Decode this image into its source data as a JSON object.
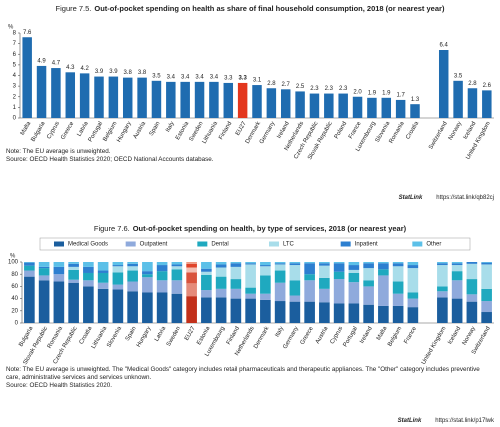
{
  "chart_data": [
    {
      "type": "bar",
      "figure_label": "Figure 7.5.",
      "title": "Out-of-pocket spending on health as share of final household consumption, 2018 (or nearest year)",
      "y_unit": "%",
      "categories": [
        "Malta",
        "Bulgaria",
        "Cyprus",
        "Greece",
        "Latvia",
        "Portugal",
        "Belgium",
        "Hungary",
        "Austria",
        "Spain",
        "Italy",
        "Estonia",
        "Sweden",
        "Lithuania",
        "Finland",
        "EU27",
        "Denmark",
        "Germany",
        "Ireland",
        "Netherlands",
        "Czech Republic",
        "Slovak Republic",
        "Poland",
        "France",
        "Luxembourg",
        "Slovenia",
        "Romania",
        "Croatia",
        null,
        "Switzerland",
        "Norway",
        "Iceland",
        "United Kingdom"
      ],
      "values": [
        7.6,
        4.9,
        4.7,
        4.3,
        4.2,
        3.9,
        3.9,
        3.8,
        3.8,
        3.5,
        3.4,
        3.4,
        3.4,
        3.4,
        3.3,
        3.3,
        3.1,
        2.8,
        2.7,
        2.5,
        2.3,
        2.3,
        2.3,
        2.0,
        1.9,
        1.9,
        1.7,
        1.3,
        null,
        6.4,
        3.5,
        2.8,
        2.6
      ],
      "value_labels": [
        "7.6",
        "4.9",
        "4.7",
        "4.3",
        "4.2",
        "3.9",
        "3.9",
        "3.8",
        "3.8",
        "3.5",
        "3.4",
        "3.4",
        "3.4",
        "3.4",
        "3.3",
        "3.3",
        "3.1",
        "2.8",
        "2.7",
        "2.5",
        "2.3",
        "2.3",
        "2.3",
        "2.0",
        "1.9",
        "1.9",
        "1.7",
        "1.3",
        null,
        "6.4",
        "3.5",
        "2.8",
        "2.6"
      ],
      "color": "#1f6cb0",
      "highlight": "EU27",
      "highlight_color": "#e3371e",
      "ylim": [
        0,
        8
      ],
      "yticks": [
        0,
        1,
        2,
        3,
        4,
        5,
        6,
        7,
        8
      ],
      "grid": false,
      "notes": [
        "Note: The EU average is unweighted.",
        "Source: OECD Health Statistics 2020; OECD National Accounts database."
      ],
      "statlink_label": "StatLink",
      "statlink_url": "https://stat.link/qb82cj"
    },
    {
      "type": "stacked_bar",
      "figure_label": "Figure 7.6.",
      "title": "Out-of-pocket spending on health, by type of services, 2018 (or nearest year)",
      "y_unit": "%",
      "categories": [
        "Bulgaria",
        "Slovak Republic",
        "Romania",
        "Czech Republic",
        "Croatia",
        "Lithuania",
        "Slovenia",
        "Spain",
        "Hungary",
        "Latvia",
        "Sweden",
        "EU27",
        "Estonia",
        "Luxembourg",
        "Finland",
        "Netherlands",
        "Denmark",
        "Italy",
        "Germany",
        "Greece",
        "Austria",
        "Cyprus",
        "Portugal",
        "Ireland",
        "Malta",
        "Belgium",
        "France",
        null,
        "United Kingdom",
        "Iceland",
        "Norway",
        "Switzerland"
      ],
      "highlight": "EU27",
      "series": [
        {
          "name": "Medical Goods",
          "color": "#1b5e9e",
          "highlight_color": "#c2301a",
          "values": [
            76,
            70,
            68,
            66,
            60,
            56,
            55,
            52,
            50,
            50,
            48,
            44,
            42,
            42,
            40,
            40,
            38,
            36,
            35,
            35,
            34,
            32,
            32,
            30,
            28,
            28,
            26,
            null,
            42,
            40,
            35,
            18
          ]
        },
        {
          "name": "Outpatient",
          "color": "#8faadc",
          "highlight_color": "#e58b7a",
          "values": [
            10,
            8,
            12,
            5,
            10,
            10,
            8,
            16,
            25,
            20,
            22,
            21,
            12,
            14,
            16,
            8,
            10,
            30,
            10,
            35,
            22,
            40,
            35,
            30,
            50,
            20,
            14,
            null,
            10,
            30,
            12,
            18
          ]
        },
        {
          "name": "Dental",
          "color": "#1fa9bf",
          "highlight_color": "#d9533c",
          "values": [
            8,
            12,
            0,
            16,
            12,
            16,
            20,
            18,
            5,
            15,
            18,
            18,
            25,
            20,
            16,
            10,
            30,
            20,
            25,
            10,
            18,
            12,
            15,
            10,
            10,
            20,
            10,
            null,
            8,
            15,
            25,
            20
          ]
        },
        {
          "name": "LTC",
          "color": "#a8ddea",
          "highlight_color": "#f3c0b4",
          "values": [
            0,
            0,
            0,
            5,
            0,
            0,
            10,
            7,
            0,
            0,
            5,
            8,
            5,
            15,
            20,
            38,
            15,
            10,
            25,
            0,
            20,
            0,
            5,
            20,
            0,
            25,
            40,
            null,
            35,
            10,
            25,
            40
          ]
        },
        {
          "name": "Inpatient",
          "color": "#2d7fd0",
          "highlight_color": "#e0442a",
          "values": [
            5,
            2,
            12,
            5,
            10,
            4,
            2,
            4,
            5,
            10,
            3,
            6,
            5,
            5,
            6,
            2,
            2,
            2,
            3,
            18,
            4,
            14,
            8,
            8,
            10,
            5,
            5,
            null,
            3,
            3,
            3,
            3
          ]
        },
        {
          "name": "Other",
          "color": "#5cc0e8",
          "highlight_color": "#ec9b85",
          "values": [
            1,
            8,
            8,
            3,
            8,
            14,
            5,
            3,
            15,
            5,
            4,
            3,
            11,
            4,
            2,
            2,
            5,
            2,
            2,
            2,
            2,
            2,
            5,
            2,
            2,
            2,
            5,
            null,
            2,
            2,
            0,
            1
          ]
        }
      ],
      "ylim": [
        0,
        100
      ],
      "yticks": [
        0,
        20,
        40,
        60,
        80,
        100
      ],
      "grid": false,
      "legend": "top",
      "notes": [
        "Note: The EU average is unweighted. The \"Medical Goods\" category includes retail pharmaceuticals and therapeutic appliances. The \"Other\" category includes preventive care, administrative services and services unknown.",
        "Source: OECD Health Statistics 2020."
      ],
      "statlink_label": "StatLink",
      "statlink_url": "https://stat.link/p17lwk"
    }
  ]
}
